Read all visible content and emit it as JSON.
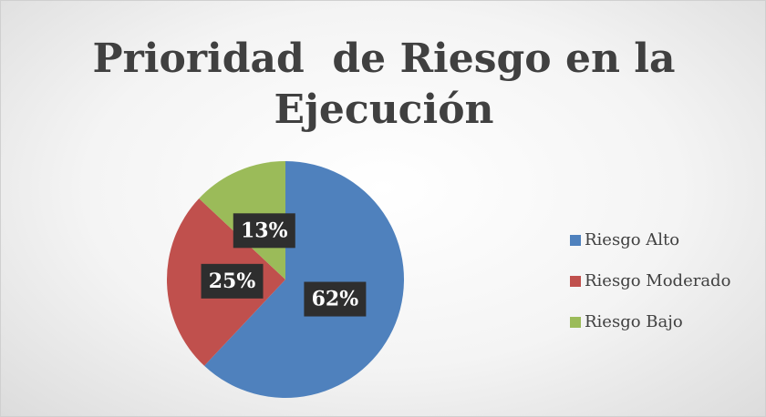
{
  "chart_data": {
    "type": "pie",
    "title": "Prioridad  de Riesgo en la Ejecución",
    "categories": [
      "Riesgo Alto",
      "Riesgo Moderado",
      "Riesgo Bajo"
    ],
    "values": [
      62,
      25,
      13
    ],
    "value_labels": [
      "62%",
      "25%",
      "13%"
    ],
    "colors": [
      "#4f81bd",
      "#c0504d",
      "#9bbb59"
    ],
    "legend": "right"
  }
}
